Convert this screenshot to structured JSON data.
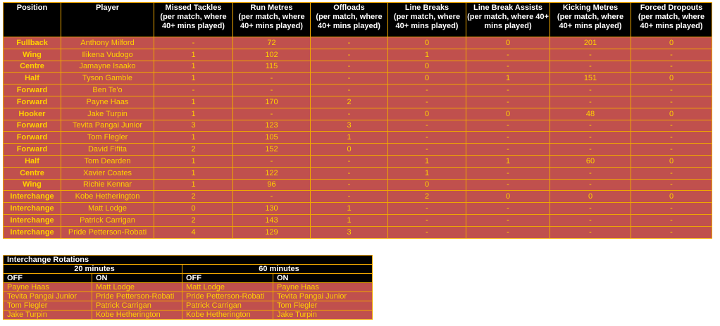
{
  "stats_table": {
    "headers": [
      {
        "title": "Position",
        "sub": ""
      },
      {
        "title": "Player",
        "sub": ""
      },
      {
        "title": "Missed Tackles",
        "sub": "(per match, where 40+ mins played)"
      },
      {
        "title": "Run Metres",
        "sub": "(per match, where 40+ mins played)"
      },
      {
        "title": "Offloads",
        "sub": "(per match, where 40+ mins played)"
      },
      {
        "title": "Line Breaks",
        "sub": "(per match, where 40+ mins played)"
      },
      {
        "title": "Line Break Assists",
        "sub": "(per match, where 40+ mins played)"
      },
      {
        "title": "Kicking Metres",
        "sub": "(per match, where 40+ mins played)"
      },
      {
        "title": "Forced Dropouts",
        "sub": "(per match, where 40+ mins played)"
      }
    ],
    "rows": [
      [
        "Fullback",
        "Anthony Milford",
        "-",
        "72",
        "-",
        "0",
        "0",
        "201",
        "0"
      ],
      [
        "Wing",
        "Ilikena Vudogo",
        "1",
        "102",
        "-",
        "1",
        "-",
        "-",
        "-"
      ],
      [
        "Centre",
        "Jamayne Isaako",
        "1",
        "115",
        "-",
        "0",
        "-",
        "-",
        "-"
      ],
      [
        "Half",
        "Tyson Gamble",
        "1",
        "-",
        "-",
        "0",
        "1",
        "151",
        "0"
      ],
      [
        "Forward",
        "Ben Te'o",
        "-",
        "-",
        "-",
        "-",
        "-",
        "-",
        "-"
      ],
      [
        "Forward",
        "Payne Haas",
        "1",
        "170",
        "2",
        "-",
        "-",
        "-",
        "-"
      ],
      [
        "Hooker",
        "Jake Turpin",
        "1",
        "-",
        "-",
        "0",
        "0",
        "48",
        "0"
      ],
      [
        "Forward",
        "Tevita Pangai Junior",
        "3",
        "123",
        "3",
        "-",
        "-",
        "-",
        "-"
      ],
      [
        "Forward",
        "Tom Flegler",
        "1",
        "105",
        "1",
        "-",
        "-",
        "-",
        "-"
      ],
      [
        "Forward",
        "David Fifita",
        "2",
        "152",
        "0",
        "-",
        "-",
        "-",
        "-"
      ],
      [
        "Half",
        "Tom Dearden",
        "1",
        "-",
        "-",
        "1",
        "1",
        "60",
        "0"
      ],
      [
        "Centre",
        "Xavier Coates",
        "1",
        "122",
        "-",
        "1",
        "-",
        "-",
        "-"
      ],
      [
        "Wing",
        "Richie Kennar",
        "1",
        "96",
        "-",
        "0",
        "-",
        "-",
        "-"
      ],
      [
        "Interchange",
        "Kobe Hetherington",
        "2",
        "-",
        "-",
        "2",
        "0",
        "0",
        "0"
      ],
      [
        "Interchange",
        "Matt Lodge",
        "0",
        "130",
        "1",
        "-",
        "-",
        "-",
        "-"
      ],
      [
        "Interchange",
        "Patrick Carrigan",
        "2",
        "143",
        "1",
        "-",
        "-",
        "-",
        "-"
      ],
      [
        "Interchange",
        "Pride Petterson-Robati",
        "4",
        "129",
        "3",
        "-",
        "-",
        "-",
        "-"
      ]
    ]
  },
  "rotations": {
    "title": "Interchange Rotations",
    "groups": [
      "20 minutes",
      "60 minutes"
    ],
    "cols": [
      "OFF",
      "ON",
      "OFF",
      "ON"
    ],
    "rows": [
      [
        "Payne Haas",
        "Matt Lodge",
        "Matt Lodge",
        "Payne Haas"
      ],
      [
        "Tevita Pangai Junior",
        "Pride Petterson-Robati",
        "Pride Petterson-Robati",
        "Tevita Pangai Junior"
      ],
      [
        "Tom Flegler",
        "Patrick Carrigan",
        "Patrick Carrigan",
        "Tom Flegler"
      ],
      [
        "Jake Turpin",
        "Kobe Hetherington",
        "Kobe Hetherington",
        "Jake Turpin"
      ]
    ]
  },
  "colors": {
    "header_bg": "#000000",
    "row_bg": "#c0504d",
    "text": "#ffd200",
    "border": "#f0a800"
  }
}
